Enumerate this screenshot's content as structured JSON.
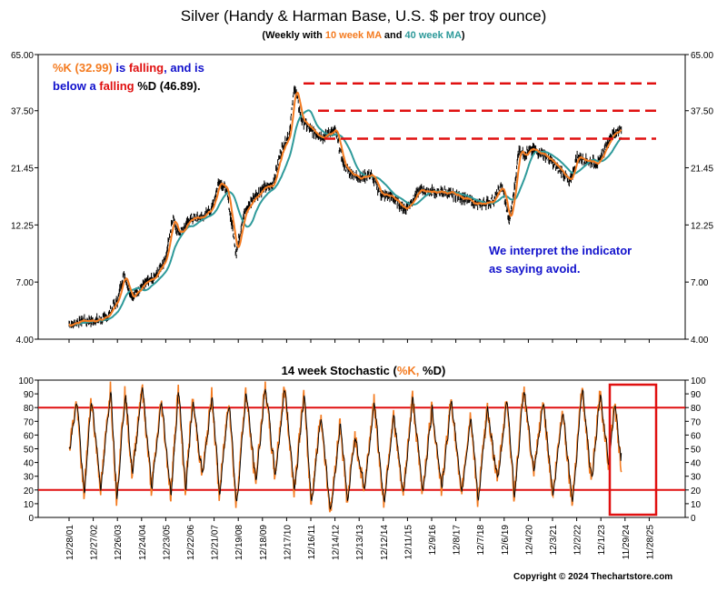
{
  "header": {
    "title": "Silver (Handy & Harman Base, U.S. $ per troy ounce)",
    "subtitle_prefix": "(Weekly with ",
    "subtitle_ma1": "10 week MA",
    "subtitle_mid": " and ",
    "subtitle_ma2": "40 week MA",
    "subtitle_suffix": ")"
  },
  "annotations": {
    "indicator": {
      "k_label": "%K (32.99)",
      "is": " is ",
      "falling1": "falling",
      "and_is": ", and is",
      "below_a": "below a ",
      "falling2": "falling",
      "d_label": " %D (46.89)."
    },
    "interpret_line1": "We interpret the indicator",
    "interpret_line2": "as saying avoid."
  },
  "stochastic_title": {
    "prefix": "14 week Stochastic (",
    "k": "%K",
    "sep": ", ",
    "d": "%D",
    "suffix": ")"
  },
  "copyright": "Copyright © 2024 Thechartstore.com",
  "colors": {
    "orange": "#f47b20",
    "teal": "#2e9a9a",
    "red": "#e01010",
    "blue": "#1111cc",
    "black": "#000000"
  },
  "chart_data": [
    {
      "type": "line",
      "title": "Silver (Handy & Harman Base, U.S. $ per troy ounce)",
      "scale": "log",
      "y_ticks": [
        "65.00",
        "37.50",
        "21.45",
        "12.25",
        "7.00",
        "4.00"
      ],
      "ylim": [
        4.0,
        65.0
      ],
      "grid": false,
      "series": [
        {
          "name": "Weekly",
          "color": "#000000"
        },
        {
          "name": "10 week MA",
          "color": "#f47b20"
        },
        {
          "name": "40 week MA",
          "color": "#2e9a9a"
        }
      ],
      "x": [
        2001.99,
        2002.5,
        2003.0,
        2003.5,
        2004.0,
        2004.25,
        2004.6,
        2005.0,
        2005.5,
        2006.0,
        2006.3,
        2006.45,
        2006.7,
        2007.0,
        2007.5,
        2007.9,
        2008.2,
        2008.5,
        2008.8,
        2008.9,
        2009.2,
        2009.6,
        2010.0,
        2010.4,
        2010.8,
        2011.1,
        2011.32,
        2011.6,
        2012.0,
        2012.5,
        2013.0,
        2013.35,
        2013.6,
        2014.0,
        2014.5,
        2014.9,
        2015.3,
        2015.9,
        2016.5,
        2016.9,
        2017.5,
        2018.0,
        2018.9,
        2019.5,
        2019.9,
        2020.2,
        2020.4,
        2020.6,
        2020.8,
        2021.1,
        2021.5,
        2021.9,
        2022.4,
        2022.7,
        2023.0,
        2023.5,
        2023.9,
        2024.3,
        2024.5,
        2024.85
      ],
      "values": [
        4.6,
        4.8,
        4.8,
        4.9,
        5.9,
        7.6,
        6.0,
        6.8,
        7.2,
        9.0,
        13.5,
        11.5,
        11.6,
        13.0,
        13.2,
        14.5,
        19.0,
        17.3,
        11.0,
        9.3,
        13.5,
        15.8,
        17.5,
        18.0,
        26.0,
        30.0,
        48.0,
        34.5,
        31.0,
        29.0,
        31.0,
        22.0,
        20.5,
        19.5,
        20.0,
        16.5,
        16.2,
        14.3,
        17.2,
        17.0,
        16.8,
        16.5,
        14.9,
        15.5,
        17.9,
        12.5,
        17.0,
        26.0,
        24.5,
        25.5,
        25.0,
        23.0,
        20.5,
        18.5,
        24.0,
        23.0,
        22.5,
        28.0,
        30.0,
        31.5
      ],
      "annotations": [
        {
          "type": "dashed-horizontal",
          "color": "#e01010",
          "y": 49.0
        },
        {
          "type": "dashed-horizontal",
          "color": "#e01010",
          "y": 37.5
        },
        {
          "type": "dashed-horizontal",
          "color": "#e01010",
          "y": 28.5
        }
      ]
    },
    {
      "type": "line",
      "title": "14 week Stochastic (%K, %D)",
      "ylim": [
        0,
        100
      ],
      "y_ticks": [
        0,
        10,
        20,
        30,
        40,
        50,
        60,
        70,
        80,
        90,
        100
      ],
      "reference_lines": [
        20,
        80
      ],
      "series": [
        {
          "name": "%K",
          "color": "#f47b20",
          "last": 32.99
        },
        {
          "name": "%D",
          "color": "#000000",
          "last": 46.89
        }
      ],
      "x": [
        2001.99,
        2002.3,
        2002.6,
        2002.9,
        2003.3,
        2003.7,
        2003.95,
        2004.3,
        2004.6,
        2005.0,
        2005.4,
        2005.8,
        2006.2,
        2006.5,
        2006.8,
        2007.1,
        2007.5,
        2007.9,
        2008.2,
        2008.6,
        2008.9,
        2009.3,
        2009.7,
        2010.1,
        2010.5,
        2010.9,
        2011.3,
        2011.7,
        2012.0,
        2012.4,
        2012.8,
        2013.2,
        2013.5,
        2013.8,
        2014.2,
        2014.6,
        2015.0,
        2015.4,
        2015.8,
        2016.2,
        2016.6,
        2017.0,
        2017.4,
        2017.8,
        2018.2,
        2018.6,
        2018.9,
        2019.3,
        2019.7,
        2020.1,
        2020.4,
        2020.8,
        2021.2,
        2021.6,
        2022.0,
        2022.4,
        2022.8,
        2023.2,
        2023.6,
        2023.95,
        2024.3,
        2024.55,
        2024.85
      ],
      "values": [
        50,
        85,
        15,
        88,
        20,
        96,
        14,
        92,
        30,
        97,
        20,
        85,
        15,
        95,
        20,
        85,
        30,
        90,
        15,
        88,
        8,
        92,
        25,
        96,
        30,
        95,
        20,
        90,
        10,
        75,
        3,
        70,
        10,
        60,
        20,
        85,
        10,
        75,
        15,
        88,
        18,
        80,
        20,
        88,
        15,
        75,
        12,
        80,
        25,
        88,
        15,
        95,
        30,
        85,
        15,
        80,
        10,
        95,
        25,
        90,
        40,
        85,
        33
      ]
    }
  ],
  "x_axis": {
    "date_labels": [
      "12/28/01",
      "12/27/02",
      "12/26/03",
      "12/24/04",
      "12/23/05",
      "12/22/06",
      "12/21/07",
      "12/19/08",
      "12/18/09",
      "12/17/10",
      "12/16/11",
      "12/14/12",
      "12/13/13",
      "12/12/14",
      "12/11/15",
      "12/9/16",
      "12/8/17",
      "12/7/18",
      "12/6/19",
      "12/4/20",
      "12/3/21",
      "12/2/22",
      "12/1/23",
      "11/29/24",
      "11/28/25"
    ]
  }
}
